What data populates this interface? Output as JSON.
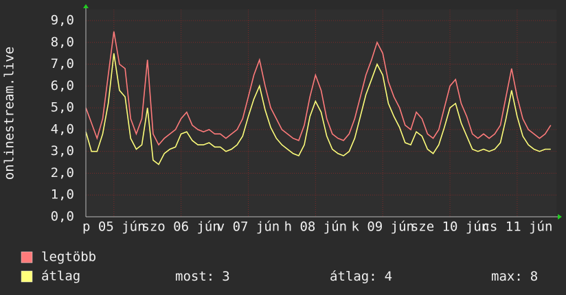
{
  "chart_data": {
    "type": "line",
    "y_label": "onlinestream.live",
    "categories": [
      null,
      null,
      null,
      null,
      null,
      "p 05 jún",
      null,
      null,
      null,
      null,
      null,
      null,
      null,
      null,
      null,
      null,
      null,
      "szo 06 jún",
      null,
      null,
      null,
      null,
      null,
      null,
      null,
      null,
      null,
      null,
      null,
      "v 07 jún",
      null,
      null,
      null,
      null,
      null,
      null,
      null,
      null,
      null,
      null,
      null,
      "h 08 jún",
      null,
      null,
      null,
      null,
      null,
      null,
      null,
      null,
      null,
      null,
      null,
      "k 09 jún",
      null,
      null,
      null,
      null,
      null,
      null,
      null,
      null,
      null,
      null,
      null,
      "sze 10 jún",
      null,
      null,
      null,
      null,
      null,
      null,
      null,
      null,
      null,
      null,
      null,
      "cs 11 jún",
      null,
      null,
      null,
      null,
      null,
      null
    ],
    "series": [
      {
        "name": "legtöbb",
        "color": "#ff7b7b",
        "values": [
          5.0,
          4.3,
          3.6,
          4.5,
          6.5,
          8.5,
          7.0,
          6.8,
          4.5,
          3.8,
          4.5,
          7.2,
          3.8,
          3.3,
          3.6,
          3.8,
          4.0,
          4.5,
          4.8,
          4.2,
          4.0,
          3.9,
          4.0,
          3.8,
          3.8,
          3.6,
          3.8,
          4.0,
          4.5,
          5.5,
          6.5,
          7.2,
          6.0,
          5.0,
          4.5,
          4.0,
          3.8,
          3.6,
          3.5,
          4.2,
          5.5,
          6.5,
          5.8,
          4.5,
          3.8,
          3.6,
          3.5,
          3.8,
          4.5,
          5.5,
          6.5,
          7.2,
          8.0,
          7.5,
          6.2,
          5.5,
          5.0,
          4.2,
          4.0,
          4.8,
          4.5,
          3.8,
          3.6,
          4.0,
          5.0,
          6.0,
          6.3,
          5.2,
          4.6,
          3.8,
          3.6,
          3.8,
          3.6,
          3.8,
          4.2,
          5.5,
          6.8,
          5.5,
          4.5,
          4.0,
          3.8,
          3.6,
          3.8,
          4.2
        ]
      },
      {
        "name": "átlag",
        "color": "#ffff7b",
        "values": [
          3.9,
          3.0,
          3.0,
          3.8,
          5.2,
          7.5,
          5.8,
          5.5,
          3.6,
          3.1,
          3.3,
          5.0,
          2.6,
          2.4,
          2.9,
          3.1,
          3.2,
          3.8,
          3.9,
          3.5,
          3.3,
          3.3,
          3.4,
          3.2,
          3.2,
          3.0,
          3.1,
          3.3,
          3.7,
          4.6,
          5.4,
          6.0,
          4.9,
          4.1,
          3.6,
          3.3,
          3.1,
          2.9,
          2.8,
          3.3,
          4.6,
          5.3,
          4.8,
          3.7,
          3.1,
          2.9,
          2.8,
          3.0,
          3.6,
          4.6,
          5.6,
          6.3,
          7.0,
          6.5,
          5.2,
          4.6,
          4.1,
          3.4,
          3.3,
          3.9,
          3.7,
          3.1,
          2.9,
          3.3,
          4.1,
          5.0,
          5.2,
          4.3,
          3.7,
          3.1,
          3.0,
          3.1,
          3.0,
          3.1,
          3.4,
          4.5,
          5.8,
          4.6,
          3.7,
          3.3,
          3.1,
          3.0,
          3.1,
          3.1
        ]
      }
    ],
    "ylim": [
      0,
      9
    ],
    "yticks": [
      {
        "value": 0,
        "label": "0,0"
      },
      {
        "value": 1,
        "label": "1,0"
      },
      {
        "value": 2,
        "label": "2,0"
      },
      {
        "value": 3,
        "label": "3,0"
      },
      {
        "value": 4,
        "label": "4,0"
      },
      {
        "value": 5,
        "label": "5,0"
      },
      {
        "value": 6,
        "label": "6,0"
      },
      {
        "value": 7,
        "label": "7,0"
      },
      {
        "value": 8,
        "label": "8,0"
      },
      {
        "value": 9,
        "label": "9,0"
      }
    ],
    "grid": true,
    "stats": [
      {
        "label": "most:",
        "value": 3
      },
      {
        "label": "átlag:",
        "value": 4
      },
      {
        "label": "max:",
        "value": 8
      }
    ]
  }
}
